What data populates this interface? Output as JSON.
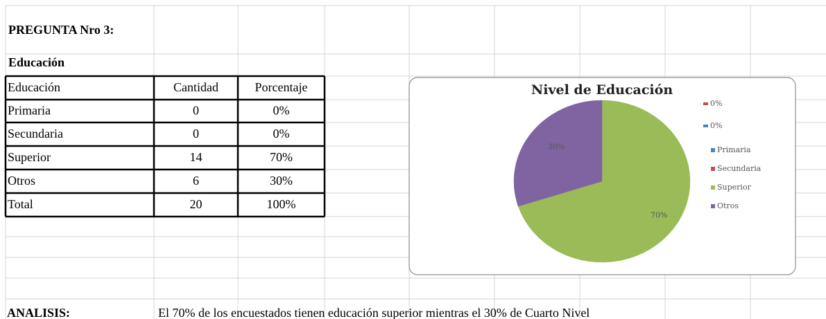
{
  "title": "PREGUNTA Nro 3:",
  "subtitle": "Educación",
  "table": {
    "header": [
      "Educación",
      "Cantidad",
      "Porcentaje"
    ],
    "rows": [
      [
        "Primaria",
        "0",
        "0%"
      ],
      [
        "Secundaria",
        "0",
        "0%"
      ],
      [
        "Superior",
        "14",
        "70%"
      ],
      [
        "Otros",
        "6",
        "30%"
      ],
      [
        "Total",
        "20",
        "100%"
      ]
    ]
  },
  "chart_data": {
    "type": "pie",
    "title": "Nivel de Educación",
    "categories": [
      "Primaria",
      "Secundaria",
      "Superior",
      "Otros"
    ],
    "values": [
      0,
      0,
      70,
      30
    ],
    "value_labels": [
      "0%",
      "0%",
      "70%",
      "30%"
    ],
    "colors": [
      "#4f81bd",
      "#c0504d",
      "#9bbb59",
      "#8064a2"
    ],
    "legend": "right"
  },
  "analysis": {
    "label": "ANALISIS:",
    "text": "El 70% de los encuestados tienen educación superior mientras el 30% de Cuarto Nivel"
  }
}
